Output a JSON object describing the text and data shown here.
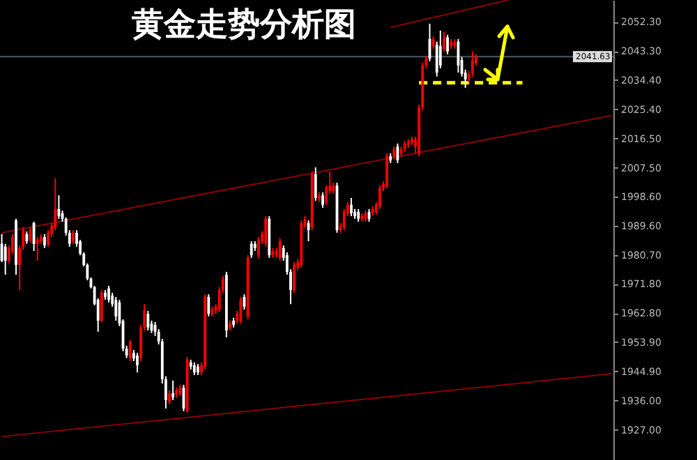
{
  "chart_data": {
    "type": "candlestick",
    "title": "黄金走势分析图",
    "categories": [
      null,
      null,
      null,
      null,
      null,
      null,
      null,
      null,
      null,
      null,
      null,
      null,
      null,
      null,
      null,
      null,
      null,
      null,
      null,
      null,
      null,
      null,
      null,
      null,
      null,
      null,
      null,
      null,
      null,
      null,
      null,
      null,
      null,
      null,
      null,
      null,
      null,
      null,
      null,
      null,
      null,
      null,
      null,
      null,
      null,
      null,
      null,
      null,
      null,
      null,
      null,
      null,
      null,
      null,
      null,
      null,
      null,
      null,
      null,
      null,
      null,
      null,
      null,
      null,
      null,
      null,
      null,
      null,
      null,
      null,
      null,
      null,
      null,
      null,
      null,
      null,
      null,
      null,
      null,
      null,
      null,
      null,
      null,
      null,
      null,
      null,
      null,
      null,
      null,
      null,
      null,
      null,
      null,
      null,
      null,
      null,
      null,
      null,
      null,
      null,
      null,
      null,
      null,
      null,
      null,
      null,
      null,
      null,
      null,
      null,
      null,
      null,
      null,
      null,
      null,
      null,
      null,
      null,
      null,
      null,
      null,
      null,
      null,
      null,
      null,
      null,
      null,
      null,
      null,
      null,
      null,
      null,
      null,
      null,
      null,
      null,
      null,
      null,
      null,
      null,
      null,
      null,
      null,
      null,
      null,
      null,
      null,
      null,
      null,
      null,
      null,
      null,
      null,
      null,
      null,
      null,
      null,
      null,
      null,
      null,
      null,
      null,
      null,
      null,
      null,
      null,
      null,
      null,
      null,
      null,
      null,
      null
    ],
    "ohlc": [
      [
        1984.1,
        1987.1,
        1978.5,
        1978.9
      ],
      [
        1983.2,
        1984.1,
        1974.6,
        1978.9
      ],
      [
        1978.9,
        1983.6,
        1978.1,
        1982.8
      ],
      [
        1981.9,
        1987.1,
        1981.1,
        1986.2
      ],
      [
        1991.3,
        1991.8,
        1974.6,
        1977.6
      ],
      [
        1977.6,
        1983.6,
        1969.9,
        1982.8
      ],
      [
        1983.2,
        1989.2,
        1982.3,
        1988.3
      ],
      [
        1987.1,
        1987.9,
        1984.1,
        1984.9
      ],
      [
        1985.3,
        1989.2,
        1984.5,
        1988.3
      ],
      [
        1990.5,
        1990.9,
        1981.9,
        1984.1
      ],
      [
        1984.1,
        1986.2,
        1978.9,
        1985.3
      ],
      [
        1984.9,
        1987.1,
        1984.1,
        1986.2
      ],
      [
        1986.2,
        1987.1,
        1982.8,
        1983.6
      ],
      [
        1984.1,
        1988.3,
        1983.2,
        1987.5
      ],
      [
        1987.1,
        1990.5,
        1986.2,
        1989.6
      ],
      [
        1989.2,
        2004.2,
        1988.3,
        1994.8
      ],
      [
        1994.8,
        1999.0,
        1991.8,
        1992.6
      ],
      [
        1993.5,
        1994.3,
        1990.9,
        1991.8
      ],
      [
        1991.8,
        1992.2,
        1986.6,
        1987.5
      ],
      [
        1987.5,
        1988.3,
        1983.2,
        1984.1
      ],
      [
        1984.9,
        1988.3,
        1984.1,
        1987.5
      ],
      [
        1987.5,
        1988.3,
        1983.2,
        1984.1
      ],
      [
        1984.9,
        1985.3,
        1980.6,
        1981.1
      ],
      [
        1981.1,
        1981.5,
        1977.2,
        1977.6
      ],
      [
        1977.6,
        1978.1,
        1972.9,
        1973.4
      ],
      [
        1973.4,
        1973.8,
        1970.4,
        1970.8
      ],
      [
        1970.8,
        1971.2,
        1965.2,
        1965.6
      ],
      [
        1966.9,
        1967.4,
        1957.1,
        1960.5
      ],
      [
        1960.5,
        1969.9,
        1960.1,
        1969.1
      ],
      [
        1969.1,
        1969.9,
        1966.9,
        1967.8
      ],
      [
        1970.4,
        1971.2,
        1966.1,
        1966.9
      ],
      [
        1968.2,
        1969.1,
        1964.8,
        1965.6
      ],
      [
        1966.9,
        1967.8,
        1960.5,
        1961.8
      ],
      [
        1966.1,
        1966.9,
        1958.8,
        1959.6
      ],
      [
        1960.5,
        1960.9,
        1951.1,
        1951.9
      ],
      [
        1951.9,
        1952.8,
        1949.0,
        1949.8
      ],
      [
        1949.0,
        1954.5,
        1948.1,
        1954.1
      ],
      [
        1950.6,
        1951.5,
        1948.1,
        1948.9
      ],
      [
        1949.8,
        1950.6,
        1944.6,
        1946.8
      ],
      [
        1949.0,
        1959.2,
        1948.1,
        1958.4
      ],
      [
        1958.4,
        1965.6,
        1957.5,
        1963.5
      ],
      [
        1962.6,
        1963.5,
        1957.5,
        1958.4
      ],
      [
        1959.6,
        1960.5,
        1956.7,
        1957.5
      ],
      [
        1959.2,
        1960.1,
        1955.8,
        1957.1
      ],
      [
        1957.1,
        1957.9,
        1953.2,
        1954.1
      ],
      [
        1954.1,
        1954.9,
        1941.2,
        1942.5
      ],
      [
        1942.5,
        1943.4,
        1933.5,
        1936.1
      ],
      [
        1935.7,
        1939.1,
        1934.8,
        1938.2
      ],
      [
        1938.2,
        1942.1,
        1936.1,
        1936.9
      ],
      [
        1937.8,
        1939.9,
        1936.9,
        1939.1
      ],
      [
        1938.2,
        1940.8,
        1937.4,
        1939.9
      ],
      [
        1939.9,
        1940.8,
        1932.7,
        1933.5
      ],
      [
        1932.7,
        1949.4,
        1932.2,
        1948.5
      ],
      [
        1947.7,
        1948.5,
        1945.5,
        1946.4
      ],
      [
        1946.8,
        1947.7,
        1943.8,
        1944.6
      ],
      [
        1946.4,
        1947.2,
        1943.8,
        1944.6
      ],
      [
        1944.6,
        1947.7,
        1943.8,
        1946.8
      ],
      [
        1946.4,
        1968.6,
        1945.5,
        1967.8
      ],
      [
        1967.8,
        1968.6,
        1961.8,
        1962.6
      ],
      [
        1962.6,
        1964.8,
        1961.8,
        1963.9
      ],
      [
        1963.5,
        1965.6,
        1962.6,
        1964.8
      ],
      [
        1963.9,
        1970.8,
        1963.1,
        1969.9
      ],
      [
        1969.9,
        1974.2,
        1969.1,
        1973.4
      ],
      [
        1974.6,
        1975.5,
        1955.4,
        1957.5
      ],
      [
        1958.4,
        1960.5,
        1957.5,
        1959.6
      ],
      [
        1960.5,
        1961.4,
        1958.4,
        1959.2
      ],
      [
        1960.5,
        1963.5,
        1959.6,
        1962.6
      ],
      [
        1960.5,
        1967.8,
        1959.6,
        1966.9
      ],
      [
        1967.8,
        1968.6,
        1963.9,
        1964.8
      ],
      [
        1961.8,
        1980.6,
        1960.9,
        1979.8
      ],
      [
        1984.1,
        1984.9,
        1979.8,
        1980.6
      ],
      [
        1984.1,
        1984.9,
        1981.9,
        1982.8
      ],
      [
        1980.6,
        1986.2,
        1979.8,
        1985.3
      ],
      [
        1984.9,
        1987.9,
        1984.1,
        1987.1
      ],
      [
        1984.1,
        1992.6,
        1983.2,
        1991.8
      ],
      [
        1991.8,
        1992.6,
        1979.8,
        1980.6
      ],
      [
        1980.6,
        1982.8,
        1979.8,
        1981.9
      ],
      [
        1980.6,
        1982.8,
        1979.8,
        1981.9
      ],
      [
        1979.8,
        1985.8,
        1978.9,
        1984.9
      ],
      [
        1982.8,
        1983.6,
        1978.9,
        1979.8
      ],
      [
        1980.6,
        1981.5,
        1974.6,
        1975.5
      ],
      [
        1975.5,
        1976.3,
        1965.6,
        1969.9
      ],
      [
        1969.9,
        1978.5,
        1969.1,
        1977.6
      ],
      [
        1976.8,
        1979.4,
        1975.9,
        1978.5
      ],
      [
        1977.6,
        1991.3,
        1976.8,
        1990.5
      ],
      [
        1989.6,
        1992.6,
        1988.8,
        1991.8
      ],
      [
        1990.5,
        1991.3,
        1984.9,
        1988.3
      ],
      [
        1989.2,
        2006.3,
        1988.3,
        2005.5
      ],
      [
        2005.5,
        2007.6,
        1997.3,
        1998.2
      ],
      [
        1997.8,
        1999.9,
        1996.9,
        1999.0
      ],
      [
        1999.0,
        1999.9,
        1995.2,
        1996.1
      ],
      [
        1996.9,
        2002.0,
        1996.1,
        2001.2
      ],
      [
        2000.3,
        2006.3,
        1999.5,
        2002.0
      ],
      [
        2000.3,
        2002.9,
        1999.5,
        2002.0
      ],
      [
        2002.0,
        2002.9,
        1987.5,
        1988.3
      ],
      [
        1988.3,
        1990.5,
        1987.5,
        1989.6
      ],
      [
        1989.2,
        1994.8,
        1988.3,
        1993.9
      ],
      [
        1993.5,
        1996.9,
        1992.6,
        1996.1
      ],
      [
        1996.1,
        1998.2,
        1992.6,
        1993.5
      ],
      [
        1993.9,
        1994.8,
        1991.8,
        1992.6
      ],
      [
        1993.9,
        1994.8,
        1990.9,
        1991.8
      ],
      [
        1991.8,
        1993.5,
        1990.9,
        1992.6
      ],
      [
        1991.8,
        1994.3,
        1990.9,
        1993.5
      ],
      [
        1993.9,
        1994.8,
        1990.9,
        1991.8
      ],
      [
        1993.5,
        1995.6,
        1992.6,
        1994.8
      ],
      [
        1993.9,
        1996.9,
        1993.1,
        1996.1
      ],
      [
        1995.6,
        2002.0,
        1994.8,
        2001.2
      ],
      [
        2001.2,
        2003.3,
        2000.3,
        2002.5
      ],
      [
        2002.0,
        2011.9,
        2001.2,
        2011.0
      ],
      [
        2011.0,
        2011.9,
        2008.9,
        2009.7
      ],
      [
        2011.0,
        2014.0,
        2010.2,
        2013.2
      ],
      [
        2014.0,
        2014.9,
        2008.9,
        2009.8
      ],
      [
        2011.9,
        2014.0,
        2011.0,
        2013.2
      ],
      [
        2013.2,
        2015.8,
        2012.3,
        2014.9
      ],
      [
        2014.5,
        2016.2,
        2013.6,
        2015.3
      ],
      [
        2015.3,
        2017.0,
        2014.5,
        2016.2
      ],
      [
        2014.0,
        2017.0,
        2011.9,
        2016.2
      ],
      [
        2011.9,
        2026.9,
        2011.0,
        2026.0
      ],
      [
        2026.0,
        2039.7,
        2025.2,
        2038.9
      ],
      [
        2038.9,
        2041.9,
        2038.0,
        2041.0
      ],
      [
        2047.0,
        2051.7,
        2040.2,
        2041.0
      ],
      [
        2044.9,
        2047.9,
        2044.0,
        2047.0
      ],
      [
        2045.3,
        2046.2,
        2035.5,
        2036.7
      ],
      [
        2044.9,
        2049.6,
        2038.0,
        2038.9
      ],
      [
        2044.0,
        2049.2,
        2043.2,
        2047.5
      ],
      [
        2047.5,
        2048.3,
        2042.3,
        2043.2
      ],
      [
        2044.9,
        2047.0,
        2044.0,
        2046.2
      ],
      [
        2044.9,
        2047.0,
        2044.0,
        2046.2
      ],
      [
        2046.2,
        2047.0,
        2036.7,
        2038.9
      ],
      [
        2040.6,
        2041.5,
        2035.5,
        2036.3
      ],
      [
        2036.7,
        2037.6,
        2032.0,
        2034.6
      ],
      [
        2034.6,
        2037.2,
        2033.7,
        2036.3
      ],
      [
        2036.3,
        2043.2,
        2035.5,
        2040.6
      ],
      [
        2039.7,
        2042.3,
        2038.9,
        2041.63
      ],
      null,
      null,
      null,
      null,
      null,
      null,
      null,
      null,
      null,
      null,
      null,
      null,
      null,
      null,
      null,
      null,
      null,
      null,
      null,
      null,
      null,
      null,
      null,
      null,
      null,
      null,
      null,
      null,
      null,
      null,
      null,
      null,
      null,
      null,
      null,
      null,
      null,
      null
    ],
    "colors": [
      "#ffffff",
      "#ffffff",
      "#ff0000",
      "#ff0000",
      "#ffffff",
      "#ff0000",
      "#ff0000",
      "#ffffff",
      "#ff0000",
      "#ffffff",
      "#ff0000",
      "#ff0000",
      "#ffffff",
      "#ff0000",
      "#ff0000",
      "#ff0000",
      "#ffffff",
      "#ffffff",
      "#ffffff",
      "#ffffff",
      "#ff0000",
      "#ffffff",
      "#ffffff",
      "#ffffff",
      "#ffffff",
      "#ffffff",
      "#ffffff",
      "#ffffff",
      "#ff0000",
      "#ffffff",
      "#ffffff",
      "#ffffff",
      "#ffffff",
      "#ffffff",
      "#ffffff",
      "#ffffff",
      "#ff0000",
      "#ffffff",
      "#ffffff",
      "#ff0000",
      "#ff0000",
      "#ffffff",
      "#ffffff",
      "#ffffff",
      "#ffffff",
      "#ffffff",
      "#ffffff",
      "#ff0000",
      "#ffffff",
      "#ff0000",
      "#ff0000",
      "#ffffff",
      "#ff0000",
      "#ffffff",
      "#ffffff",
      "#ffffff",
      "#ff0000",
      "#ff0000",
      "#ffffff",
      "#ff0000",
      "#ff0000",
      "#ff0000",
      "#ff0000",
      "#ffffff",
      "#ff0000",
      "#ffffff",
      "#ff0000",
      "#ff0000",
      "#ffffff",
      "#ff0000",
      "#ffffff",
      "#ffffff",
      "#ff0000",
      "#ff0000",
      "#ff0000",
      "#ffffff",
      "#ff0000",
      "#ff0000",
      "#ff0000",
      "#ffffff",
      "#ffffff",
      "#ffffff",
      "#ff0000",
      "#ff0000",
      "#ff0000",
      "#ff0000",
      "#ffffff",
      "#ff0000",
      "#ffffff",
      "#ff0000",
      "#ffffff",
      "#ff0000",
      "#ff0000",
      "#ff0000",
      "#ffffff",
      "#ff0000",
      "#ff0000",
      "#ff0000",
      "#ffffff",
      "#ffffff",
      "#ffffff",
      "#ff0000",
      "#ff0000",
      "#ffffff",
      "#ff0000",
      "#ff0000",
      "#ff0000",
      "#ff0000",
      "#ff0000",
      "#ffffff",
      "#ff0000",
      "#ffffff",
      "#ff0000",
      "#ff0000",
      "#ff0000",
      "#ff0000",
      "#ff0000",
      "#ff0000",
      "#ff0000",
      "#ff0000",
      "#ffffff",
      "#ff0000",
      "#ffffff",
      "#ffffff",
      "#ff0000",
      "#ffffff",
      "#ff0000",
      "#ff0000",
      "#ffffff",
      "#ffffff",
      "#ffffff",
      "#ff0000",
      "#ff0000",
      "#ff0000",
      null,
      null,
      null,
      null,
      null,
      null,
      null,
      null,
      null,
      null,
      null,
      null,
      null,
      null,
      null,
      null,
      null,
      null,
      null,
      null,
      null,
      null,
      null,
      null,
      null,
      null,
      null,
      null,
      null,
      null,
      null,
      null,
      null,
      null,
      null,
      null,
      null,
      null
    ],
    "series": [
      {
        "type": "line",
        "color": "#8b0000",
        "values": [
          1987.5,
          null,
          null,
          null,
          null,
          null,
          null,
          null,
          null,
          null,
          null,
          null,
          null,
          null,
          null,
          null,
          null,
          null,
          null,
          null,
          null,
          null,
          null,
          null,
          null,
          null,
          null,
          null,
          null,
          null,
          null,
          null,
          null,
          null,
          null,
          null,
          null,
          null,
          null,
          null,
          null,
          null,
          null,
          null,
          null,
          null,
          null,
          null,
          null,
          null,
          null,
          null,
          null,
          null,
          null,
          null,
          null,
          null,
          null,
          null,
          null,
          null,
          null,
          null,
          null,
          null,
          null,
          null,
          null,
          null,
          null,
          null,
          null,
          null,
          null,
          null,
          null,
          null,
          null,
          null,
          null,
          null,
          null,
          null,
          null,
          null,
          null,
          null,
          null,
          null,
          null,
          null,
          null,
          null,
          null,
          null,
          null,
          null,
          null,
          null,
          null,
          null,
          null,
          null,
          null,
          null,
          null,
          null,
          null,
          null,
          null,
          null,
          null,
          null,
          null,
          null,
          null,
          null,
          null,
          null,
          null,
          null,
          null,
          null,
          null,
          null,
          null,
          null,
          null,
          null,
          null,
          null,
          null,
          null,
          null,
          null,
          null,
          null,
          null,
          null,
          null,
          null,
          null,
          null,
          null,
          null,
          null,
          null,
          null,
          null,
          null,
          null,
          null,
          null,
          null,
          null,
          null,
          null,
          null,
          null,
          null,
          null,
          null,
          null,
          null,
          null,
          null,
          null,
          null,
          null,
          null,
          2023.5
        ]
      },
      {
        "type": "line",
        "color": "#8b0000",
        "values": [
          1924.9,
          null,
          null,
          null,
          null,
          null,
          null,
          null,
          null,
          null,
          null,
          null,
          null,
          null,
          null,
          null,
          null,
          null,
          null,
          null,
          null,
          null,
          null,
          null,
          null,
          null,
          null,
          null,
          null,
          null,
          null,
          null,
          null,
          null,
          null,
          null,
          null,
          null,
          null,
          null,
          null,
          null,
          null,
          null,
          null,
          null,
          null,
          null,
          null,
          null,
          null,
          null,
          null,
          null,
          null,
          null,
          null,
          null,
          null,
          null,
          null,
          null,
          null,
          null,
          null,
          null,
          null,
          null,
          null,
          null,
          null,
          null,
          null,
          null,
          null,
          null,
          null,
          null,
          null,
          null,
          null,
          null,
          null,
          null,
          null,
          null,
          null,
          null,
          null,
          null,
          null,
          null,
          null,
          null,
          null,
          null,
          null,
          null,
          null,
          null,
          null,
          null,
          null,
          null,
          null,
          null,
          null,
          null,
          null,
          null,
          null,
          null,
          null,
          null,
          null,
          null,
          null,
          null,
          null,
          null,
          null,
          null,
          null,
          null,
          null,
          null,
          null,
          null,
          null,
          null,
          null,
          null,
          null,
          null,
          null,
          null,
          null,
          null,
          null,
          null,
          null,
          null,
          null,
          null,
          null,
          null,
          null,
          null,
          null,
          null,
          null,
          null,
          null,
          null,
          null,
          null,
          null,
          null,
          null,
          null,
          null,
          null,
          null,
          null,
          null,
          null,
          null,
          null,
          null,
          null,
          null,
          1944.2
        ]
      },
      {
        "type": "line",
        "color": "#8b0000",
        "values": [
          null,
          null,
          null,
          null,
          null,
          null,
          null,
          null,
          null,
          null,
          null,
          null,
          null,
          null,
          null,
          null,
          null,
          null,
          null,
          null,
          null,
          null,
          null,
          null,
          null,
          null,
          null,
          null,
          null,
          null,
          null,
          null,
          null,
          null,
          null,
          null,
          null,
          null,
          null,
          null,
          null,
          null,
          null,
          null,
          null,
          null,
          null,
          null,
          null,
          null,
          null,
          null,
          null,
          null,
          null,
          null,
          null,
          null,
          null,
          null,
          null,
          null,
          null,
          null,
          null,
          null,
          null,
          null,
          null,
          null,
          null,
          null,
          null,
          null,
          null,
          null,
          null,
          null,
          null,
          null,
          null,
          null,
          null,
          null,
          null,
          null,
          null,
          null,
          null,
          null,
          null,
          null,
          null,
          null,
          null,
          null,
          null,
          null,
          null,
          null,
          null,
          null,
          null,
          null,
          null,
          null,
          null,
          null,
          null,
          2050.6,
          null,
          null,
          null,
          null,
          null,
          null,
          null,
          null,
          null,
          null,
          null,
          null,
          null,
          null,
          null,
          null,
          null,
          null,
          null,
          null,
          null,
          null,
          null,
          null,
          null,
          null,
          null,
          null,
          null,
          null,
          null,
          null,
          2059.0,
          null,
          null,
          null,
          null,
          null,
          null,
          null,
          null,
          null,
          null,
          null,
          null,
          null,
          null,
          null,
          null,
          null,
          null,
          null,
          null,
          null,
          null,
          null,
          null,
          null,
          null,
          null,
          null,
          null
        ]
      },
      {
        "type": "line",
        "color": "#ffff00",
        "line_style": "dashed",
        "values": [
          null,
          null,
          null,
          null,
          null,
          null,
          null,
          null,
          null,
          null,
          null,
          null,
          null,
          null,
          null,
          null,
          null,
          null,
          null,
          null,
          null,
          null,
          null,
          null,
          null,
          null,
          null,
          null,
          null,
          null,
          null,
          null,
          null,
          null,
          null,
          null,
          null,
          null,
          null,
          null,
          null,
          null,
          null,
          null,
          null,
          null,
          null,
          null,
          null,
          null,
          null,
          null,
          null,
          null,
          null,
          null,
          null,
          null,
          null,
          null,
          null,
          null,
          null,
          null,
          null,
          null,
          null,
          null,
          null,
          null,
          null,
          null,
          null,
          null,
          null,
          null,
          null,
          null,
          null,
          null,
          null,
          null,
          null,
          null,
          null,
          null,
          null,
          null,
          null,
          null,
          null,
          null,
          null,
          null,
          null,
          null,
          null,
          null,
          null,
          null,
          null,
          null,
          null,
          null,
          null,
          null,
          null,
          null,
          null,
          null,
          null,
          null,
          null,
          null,
          null,
          null,
          null,
          2033.6,
          null,
          null,
          null,
          null,
          null,
          null,
          null,
          null,
          null,
          null,
          null,
          null,
          null,
          null,
          null,
          null,
          null,
          null,
          null,
          null,
          null,
          null,
          null,
          null,
          null,
          null,
          null,
          null,
          2033.6,
          null,
          null,
          null,
          null,
          null,
          null,
          null,
          null,
          null,
          null,
          null,
          null,
          null,
          null,
          null,
          null,
          null,
          null,
          null,
          null,
          null,
          null,
          null,
          null,
          null
        ]
      }
    ],
    "ref_lines": [
      {
        "axis": "y",
        "value": 2041.63,
        "label": "2041.63",
        "color": "#4a5866"
      }
    ],
    "ylim": [
      1917.7,
      2059.0
    ],
    "yticks": [
      {
        "value": 2052.3,
        "label": "2052.30"
      },
      {
        "value": 2043.3,
        "label": "2043.30"
      },
      {
        "value": 2034.4,
        "label": "2034.40"
      },
      {
        "value": 2025.4,
        "label": "2025.40"
      },
      {
        "value": 2016.5,
        "label": "2016.50"
      },
      {
        "value": 2007.5,
        "label": "2007.50"
      },
      {
        "value": 1998.6,
        "label": "1998.60"
      },
      {
        "value": 1989.6,
        "label": "1989.60"
      },
      {
        "value": 1980.7,
        "label": "1980.70"
      },
      {
        "value": 1971.8,
        "label": "1971.80"
      },
      {
        "value": 1962.8,
        "label": "1962.80"
      },
      {
        "value": 1953.9,
        "label": "1953.90"
      },
      {
        "value": 1944.9,
        "label": "1944.90"
      },
      {
        "value": 1936.0,
        "label": "1936.00"
      },
      {
        "value": 1927.0,
        "label": "1927.00"
      }
    ],
    "tick_labels": "y"
  }
}
